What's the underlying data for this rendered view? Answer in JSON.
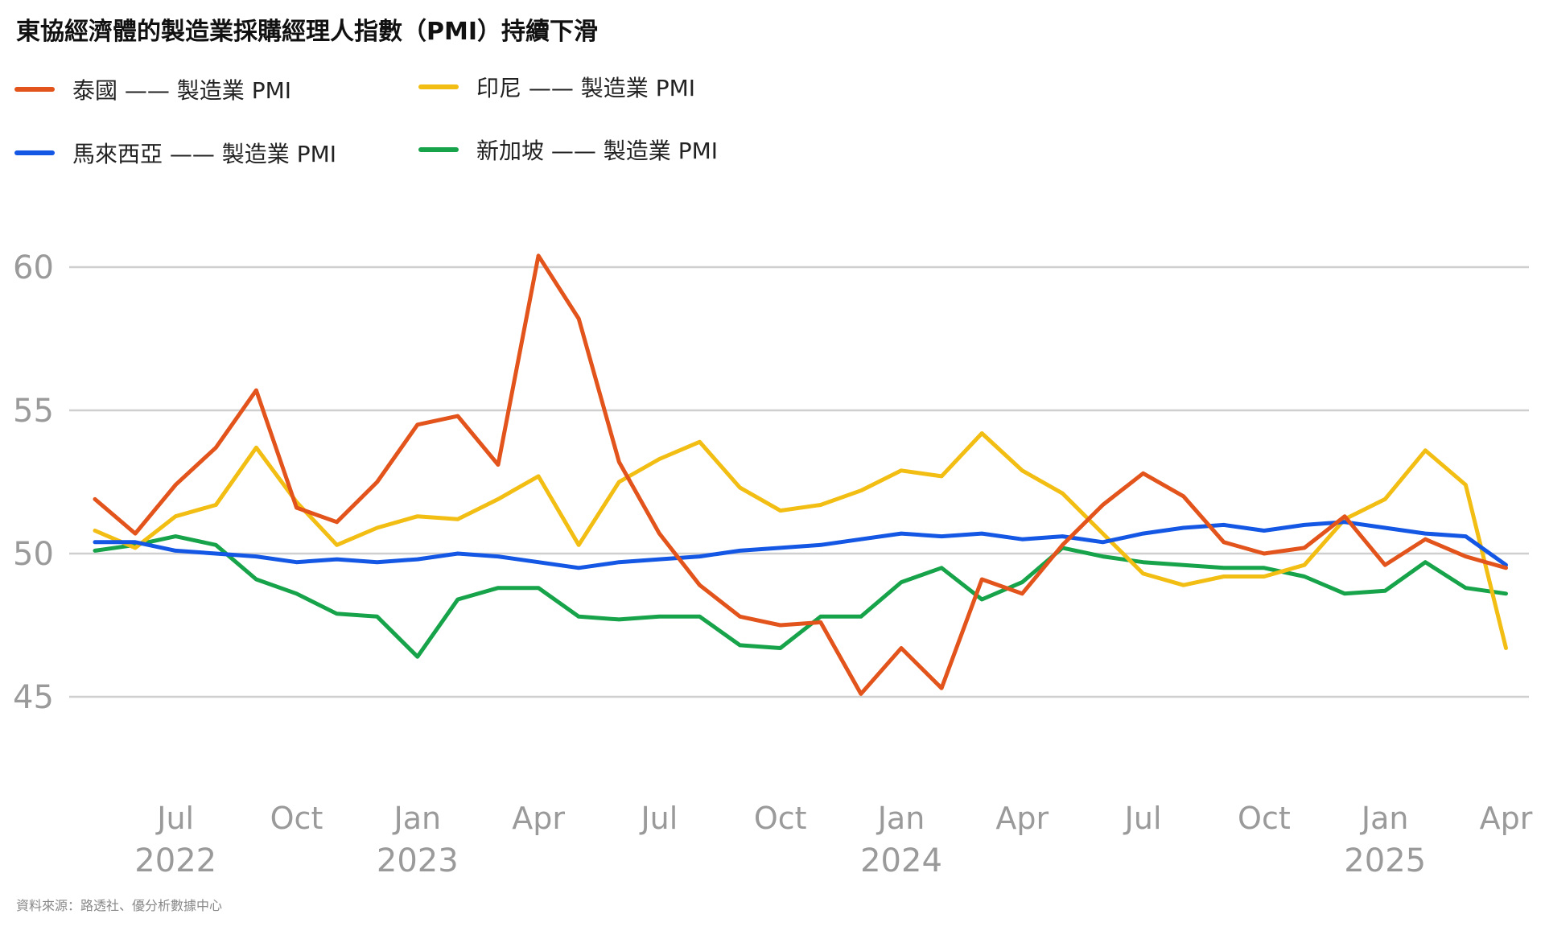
{
  "title": "東協經濟體的製造業採購經理人指數（PMI）持續下滑",
  "source": "資料來源：路透社、優分析數據中心",
  "chart_data": {
    "type": "line",
    "title": "東協經濟體的製造業採購經理人指數（PMI）持續下滑",
    "ylim": [
      42,
      62
    ],
    "yticks": [
      45,
      50,
      55,
      60
    ],
    "grid": true,
    "legend_position": "top-left",
    "x": [
      "2022-05",
      "2022-06",
      "2022-07",
      "2022-08",
      "2022-09",
      "2022-10",
      "2022-11",
      "2022-12",
      "2023-01",
      "2023-02",
      "2023-03",
      "2023-04",
      "2023-05",
      "2023-06",
      "2023-07",
      "2023-08",
      "2023-09",
      "2023-10",
      "2023-11",
      "2023-12",
      "2024-01",
      "2024-02",
      "2024-03",
      "2024-04",
      "2024-05",
      "2024-06",
      "2024-07",
      "2024-08",
      "2024-09",
      "2024-10",
      "2024-11",
      "2024-12",
      "2025-01",
      "2025-02",
      "2025-03",
      "2025-04"
    ],
    "xtick_labels": [
      {
        "month": "2022-07",
        "label": "Jul",
        "year": "2022"
      },
      {
        "month": "2022-10",
        "label": "Oct",
        "year": ""
      },
      {
        "month": "2023-01",
        "label": "Jan",
        "year": "2023"
      },
      {
        "month": "2023-04",
        "label": "Apr",
        "year": ""
      },
      {
        "month": "2023-07",
        "label": "Jul",
        "year": ""
      },
      {
        "month": "2023-10",
        "label": "Oct",
        "year": ""
      },
      {
        "month": "2024-01",
        "label": "Jan",
        "year": "2024"
      },
      {
        "month": "2024-04",
        "label": "Apr",
        "year": ""
      },
      {
        "month": "2024-07",
        "label": "Jul",
        "year": ""
      },
      {
        "month": "2024-10",
        "label": "Oct",
        "year": ""
      },
      {
        "month": "2025-01",
        "label": "Jan",
        "year": "2025"
      },
      {
        "month": "2025-04",
        "label": "Apr",
        "year": ""
      }
    ],
    "series": [
      {
        "key": "thailand",
        "name": "泰國 —— 製造業 PMI",
        "color": "#E2541B",
        "values": [
          51.9,
          50.7,
          52.4,
          53.7,
          55.7,
          51.6,
          51.1,
          52.5,
          54.5,
          54.8,
          53.1,
          60.4,
          58.2,
          53.2,
          50.7,
          48.9,
          47.8,
          47.5,
          47.6,
          45.1,
          46.7,
          45.3,
          49.1,
          48.6,
          50.3,
          51.7,
          52.8,
          52.0,
          50.4,
          50.0,
          50.2,
          51.3,
          49.6,
          50.5,
          49.9,
          49.5
        ]
      },
      {
        "key": "indonesia",
        "name": "印尼 —— 製造業 PMI",
        "color": "#F2BE13",
        "values": [
          50.8,
          50.2,
          51.3,
          51.7,
          53.7,
          51.8,
          50.3,
          50.9,
          51.3,
          51.2,
          51.9,
          52.7,
          50.3,
          52.5,
          53.3,
          53.9,
          52.3,
          51.5,
          51.7,
          52.2,
          52.9,
          52.7,
          54.2,
          52.9,
          52.1,
          50.7,
          49.3,
          48.9,
          49.2,
          49.2,
          49.6,
          51.2,
          51.9,
          53.6,
          52.4,
          46.7
        ]
      },
      {
        "key": "malaysia",
        "name": "馬來西亞 —— 製造業 PMI",
        "color": "#1357E4",
        "values": [
          50.4,
          50.4,
          50.1,
          50.0,
          49.9,
          49.7,
          49.8,
          49.7,
          49.8,
          50.0,
          49.9,
          49.7,
          49.5,
          49.7,
          49.8,
          49.9,
          50.1,
          50.2,
          50.3,
          50.5,
          50.7,
          50.6,
          50.7,
          50.5,
          50.6,
          50.4,
          50.7,
          50.9,
          51.0,
          50.8,
          51.0,
          51.1,
          50.9,
          50.7,
          50.6,
          49.6
        ]
      },
      {
        "key": "singapore",
        "name": "新加坡 —— 製造業 PMI",
        "color": "#17A34A",
        "values": [
          50.1,
          50.3,
          50.6,
          50.3,
          49.1,
          48.6,
          47.9,
          47.8,
          46.4,
          48.4,
          48.8,
          48.8,
          47.8,
          47.7,
          47.8,
          47.8,
          46.8,
          46.7,
          47.8,
          47.8,
          49.0,
          49.5,
          48.4,
          49.0,
          50.2,
          49.9,
          49.7,
          49.6,
          49.5,
          49.5,
          49.2,
          48.6,
          48.7,
          49.7,
          48.8,
          48.6
        ]
      }
    ]
  }
}
